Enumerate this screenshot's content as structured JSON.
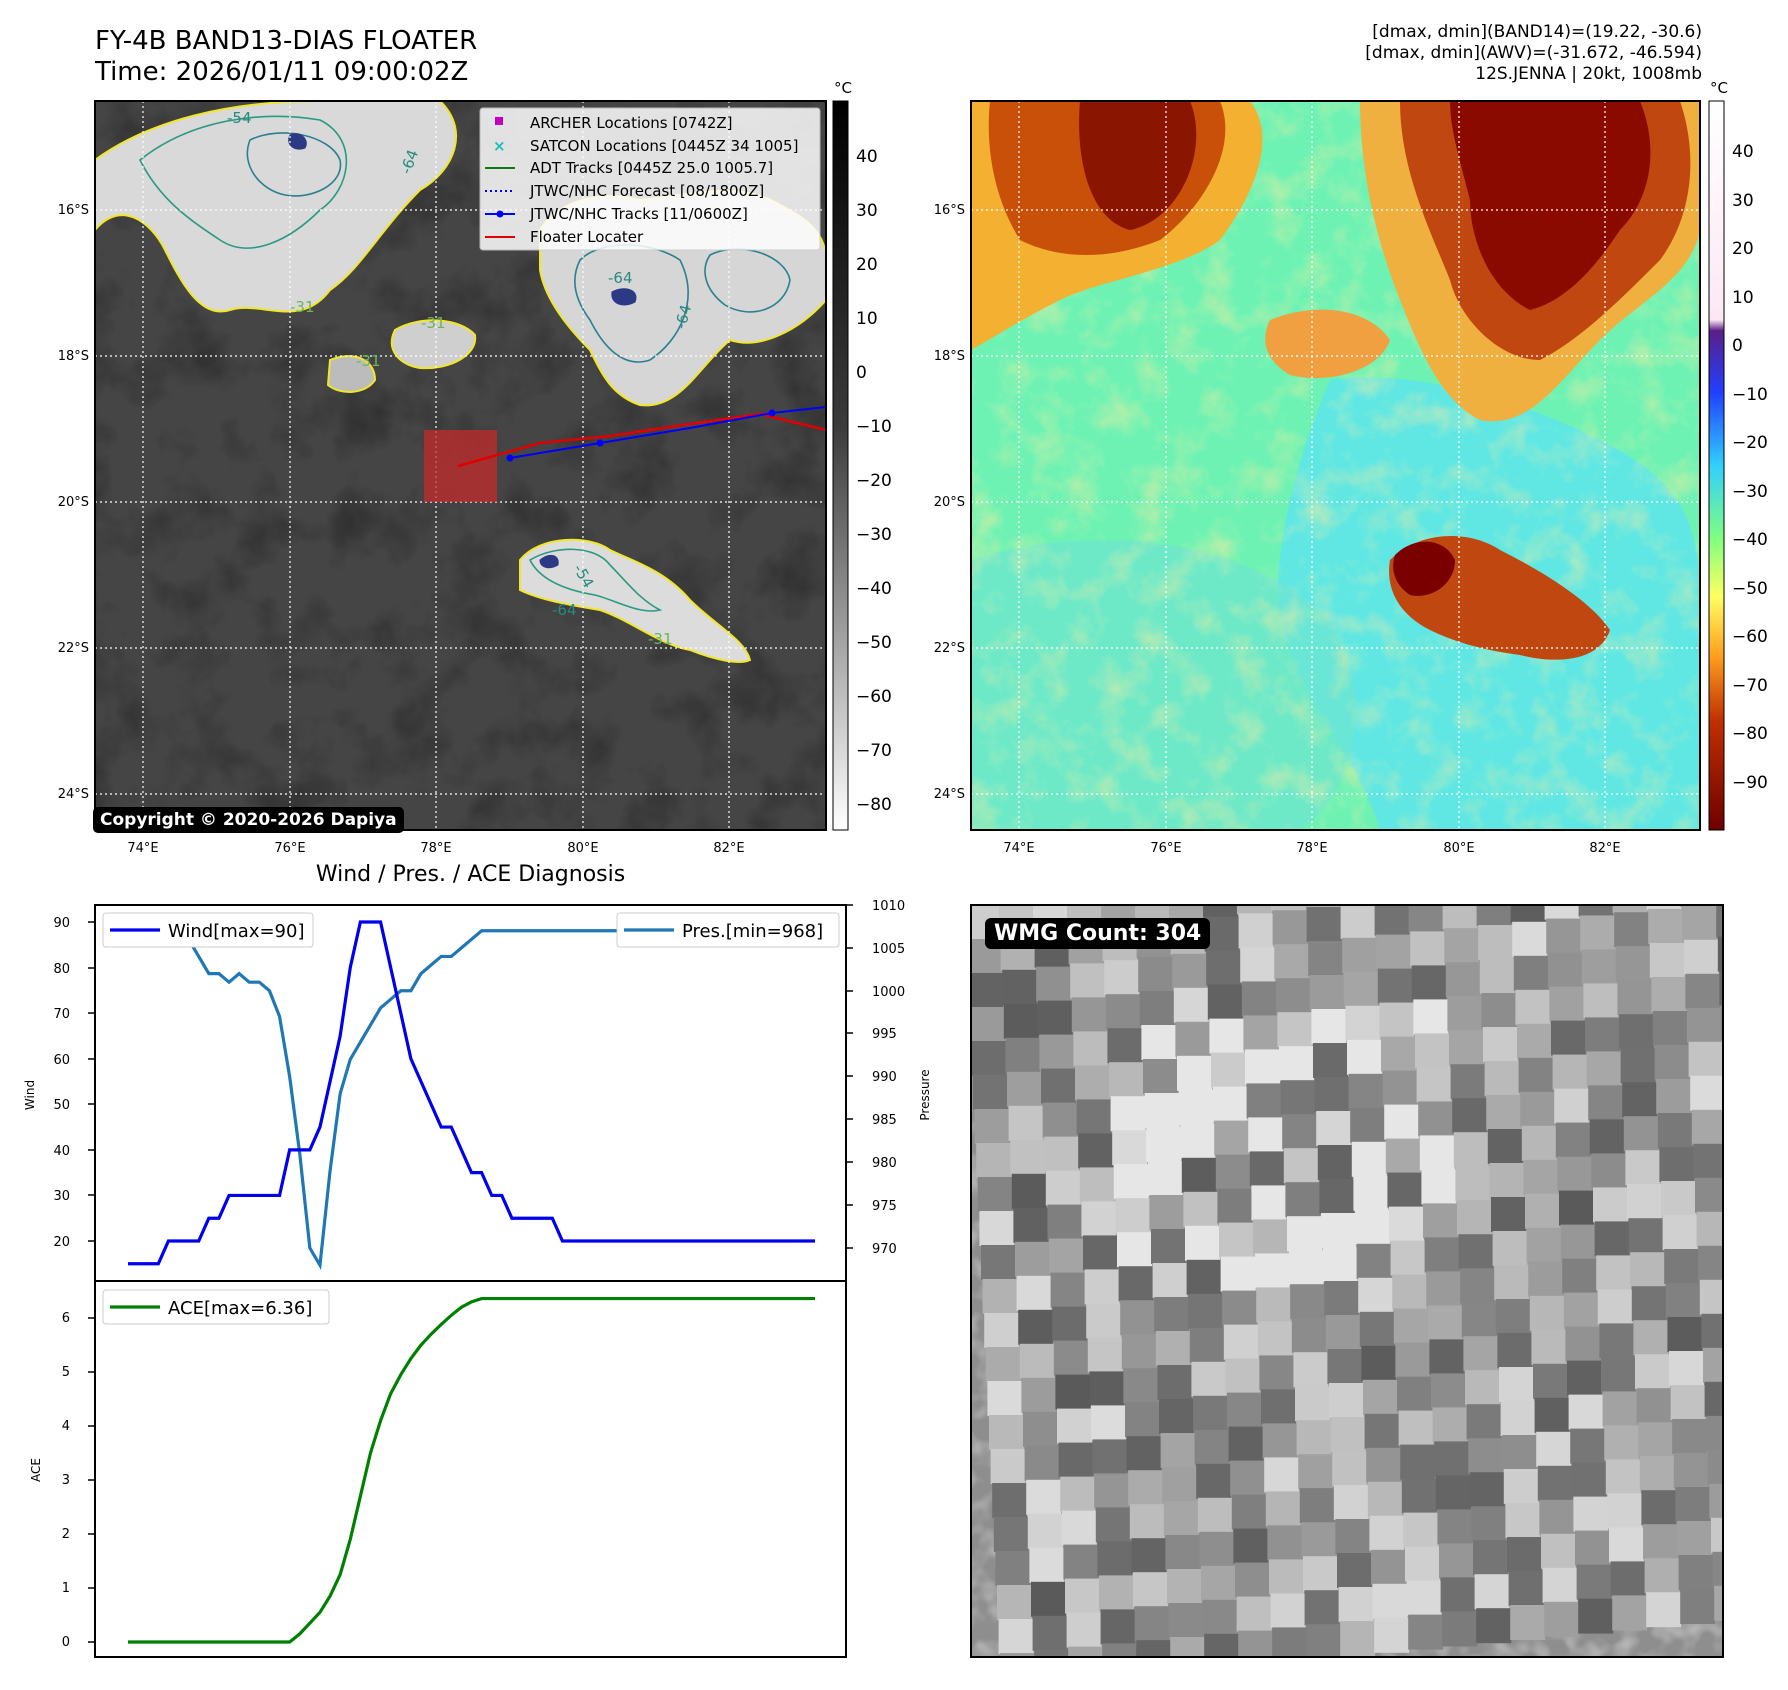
{
  "header": {
    "title_line1": "FY-4B BAND13-DIAS FLOATER",
    "title_line2": "Time: 2026/01/11 09:00:02Z",
    "info_line1": "[dmax, dmin](BAND14)=(19.22, -30.6)",
    "info_line2": "[dmax, dmin](AWV)=(-31.672, -46.594)",
    "info_line3": "12S.JENNA | 20kt, 1008mb"
  },
  "ir_panel": {
    "lat_labels": [
      "16°S",
      "18°S",
      "20°S",
      "22°S",
      "24°S"
    ],
    "lon_labels": [
      "74°E",
      "76°E",
      "78°E",
      "80°E",
      "82°E"
    ],
    "contour_labels": [
      "-54",
      "-64",
      "-64",
      "-31",
      "-31",
      "-31",
      "-64",
      "-54",
      "-64",
      "-31"
    ],
    "copyright": "Copyright © 2020-2026 Dapiya",
    "legend": [
      {
        "label": "ARCHER Locations [0742Z]",
        "color": "#c000c0",
        "marker": "square"
      },
      {
        "label": "SATCON Locations [0445Z 34 1005]",
        "color": "#18bfbf",
        "marker": "x"
      },
      {
        "label": "ADT Tracks [0445Z 25.0 1005.7]",
        "color": "#117711",
        "marker": "line"
      },
      {
        "label": "JTWC/NHC Forecast [08/1800Z]",
        "color": "#0000ff",
        "marker": "dotted"
      },
      {
        "label": "JTWC/NHC Tracks [11/0600Z]",
        "color": "#0000ff",
        "marker": "line-dot"
      },
      {
        "label": "Floater Locater",
        "color": "#e00000",
        "marker": "line"
      }
    ]
  },
  "ir_colorbar": {
    "unit": "°C",
    "ticks": [
      "40",
      "30",
      "20",
      "10",
      "0",
      "−10",
      "−20",
      "−30",
      "−40",
      "−50",
      "−60",
      "−70",
      "−80"
    ]
  },
  "wv_panel": {
    "lat_labels": [
      "16°S",
      "18°S",
      "20°S",
      "22°S",
      "24°S"
    ],
    "lon_labels": [
      "74°E",
      "76°E",
      "78°E",
      "80°E",
      "82°E"
    ]
  },
  "wv_colorbar": {
    "unit": "°C",
    "ticks": [
      "40",
      "30",
      "20",
      "10",
      "0",
      "−10",
      "−20",
      "−30",
      "−40",
      "−50",
      "−60",
      "−70",
      "−80",
      "−90"
    ]
  },
  "diag": {
    "title": "Wind / Pres. / ACE Diagnosis",
    "wind_legend": "Wind[max=90]",
    "pres_legend": "Pres.[min=968]",
    "ace_legend": "ACE[max=6.36]",
    "wind_ylabel": "Wind",
    "pres_ylabel": "Pressure",
    "ace_ylabel": "ACE",
    "wind_ticks": [
      "90",
      "80",
      "70",
      "60",
      "50",
      "40",
      "30",
      "20"
    ],
    "pres_ticks": [
      "1010",
      "1005",
      "1000",
      "995",
      "990",
      "985",
      "980",
      "975",
      "970"
    ],
    "ace_ticks": [
      "6",
      "5",
      "4",
      "3",
      "2",
      "1",
      "0"
    ]
  },
  "wmg": {
    "label": "WMG Count: 304"
  },
  "chart_data": [
    {
      "type": "line",
      "title": "Wind / Pres. / ACE Diagnosis",
      "x": [
        0,
        1,
        2,
        3,
        4,
        5,
        6,
        7,
        8,
        9,
        10,
        11,
        12,
        13,
        14,
        15,
        16,
        17,
        18,
        19,
        20,
        21,
        22,
        23,
        24,
        25,
        26,
        27,
        28,
        29,
        30,
        31,
        32,
        33,
        34,
        35,
        36,
        37,
        38,
        39,
        40,
        41,
        42,
        43,
        44,
        45,
        46,
        47,
        48,
        49,
        50,
        51,
        52,
        53,
        54,
        55,
        56,
        57,
        58,
        59,
        60,
        61,
        62,
        63,
        64,
        65,
        66,
        67,
        68
      ],
      "series": [
        {
          "name": "Wind[max=90]",
          "axis": "left",
          "color": "#0000ee",
          "values": [
            15,
            15,
            15,
            15,
            20,
            20,
            20,
            20,
            25,
            25,
            30,
            30,
            30,
            30,
            30,
            30,
            40,
            40,
            40,
            45,
            55,
            65,
            80,
            90,
            90,
            90,
            80,
            70,
            60,
            55,
            50,
            45,
            45,
            40,
            35,
            35,
            30,
            30,
            25,
            25,
            25,
            25,
            25,
            20,
            20,
            20,
            20,
            20,
            20,
            20,
            20,
            20,
            20,
            20,
            20,
            20,
            20,
            20,
            20,
            20,
            20,
            20,
            20,
            20,
            20,
            20,
            20,
            20,
            20
          ]
        },
        {
          "name": "Pres.[min=968]",
          "axis": "right",
          "color": "#1f77b4",
          "values": [
            1007,
            1007,
            1007,
            1007,
            1007,
            1006,
            1006,
            1004,
            1002,
            1002,
            1001,
            1002,
            1001,
            1001,
            1000,
            997,
            990,
            981,
            970,
            968,
            979,
            988,
            992,
            994,
            996,
            998,
            999,
            1000,
            1000,
            1002,
            1003,
            1004,
            1004,
            1005,
            1006,
            1007,
            1007,
            1007,
            1007,
            1007,
            1007,
            1007,
            1007,
            1007,
            1007,
            1007,
            1007,
            1007,
            1007,
            1007,
            1007,
            1007,
            1007,
            1007,
            1007,
            1007,
            1007,
            1007,
            1007,
            1007,
            1007,
            1007,
            1007,
            1007,
            1007,
            1007,
            1007,
            1007,
            1007
          ]
        }
      ],
      "wind_ylim": [
        12,
        92
      ],
      "pres_ylim": [
        967,
        1010
      ],
      "xlabel": "",
      "legend": "top"
    },
    {
      "type": "line",
      "series": [
        {
          "name": "ACE[max=6.36]",
          "color": "#008000",
          "values": [
            0,
            0,
            0,
            0,
            0,
            0,
            0,
            0,
            0,
            0,
            0,
            0,
            0,
            0,
            0,
            0,
            0,
            0.15,
            0.35,
            0.55,
            0.85,
            1.25,
            1.9,
            2.7,
            3.5,
            4.1,
            4.6,
            4.95,
            5.25,
            5.5,
            5.7,
            5.88,
            6.05,
            6.2,
            6.3,
            6.36,
            6.36,
            6.36,
            6.36,
            6.36,
            6.36,
            6.36,
            6.36,
            6.36,
            6.36,
            6.36,
            6.36,
            6.36,
            6.36,
            6.36,
            6.36,
            6.36,
            6.36,
            6.36,
            6.36,
            6.36,
            6.36,
            6.36,
            6.36,
            6.36,
            6.36,
            6.36,
            6.36,
            6.36,
            6.36,
            6.36,
            6.36,
            6.36,
            6.36
          ]
        }
      ],
      "ylim": [
        -0.2,
        6.7
      ],
      "ylabel": "ACE",
      "legend": "top-left"
    }
  ]
}
